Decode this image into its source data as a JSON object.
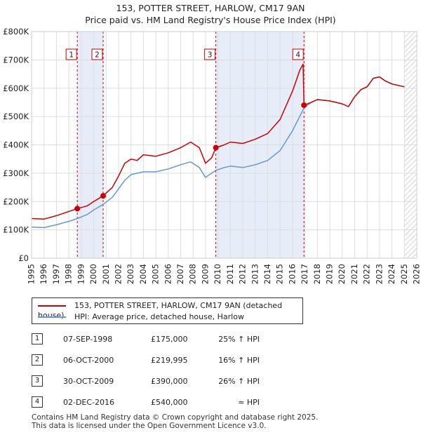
{
  "title_line1": "153, POTTER STREET, HARLOW, CM17 9AN",
  "title_line2": "Price paid vs. HM Land Registry's House Price Index (HPI)",
  "chart_data": {
    "type": "line",
    "ylim": [
      0,
      800000
    ],
    "xlim": [
      1995,
      2026
    ],
    "yticks": [
      {
        "value": 0,
        "label": "£0"
      },
      {
        "value": 100000,
        "label": "£100K"
      },
      {
        "value": 200000,
        "label": "£200K"
      },
      {
        "value": 300000,
        "label": "£300K"
      },
      {
        "value": 400000,
        "label": "£400K"
      },
      {
        "value": 500000,
        "label": "£500K"
      },
      {
        "value": 600000,
        "label": "£600K"
      },
      {
        "value": 700000,
        "label": "£700K"
      },
      {
        "value": 800000,
        "label": "£800K"
      }
    ],
    "xticks": [
      "1995",
      "1996",
      "1997",
      "1998",
      "1999",
      "2000",
      "2001",
      "2002",
      "2003",
      "2004",
      "2005",
      "2006",
      "2007",
      "2008",
      "2009",
      "2010",
      "2011",
      "2012",
      "2013",
      "2014",
      "2015",
      "2016",
      "2017",
      "2018",
      "2019",
      "2020",
      "2021",
      "2022",
      "2023",
      "2024",
      "2025",
      "2026"
    ],
    "shaded_periods": [
      [
        1998.68,
        2000.76
      ],
      [
        2009.83,
        2016.92
      ]
    ],
    "forecast_start": 2025.0,
    "series": [
      {
        "name": "153, POTTER STREET, HARLOW, CM17 9AN (detached house)",
        "color": "#cc0000",
        "points": [
          [
            1995.0,
            140000
          ],
          [
            1996.0,
            138000
          ],
          [
            1997.0,
            150000
          ],
          [
            1998.0,
            165000
          ],
          [
            1998.68,
            175000
          ],
          [
            1999.5,
            185000
          ],
          [
            2000.0,
            200000
          ],
          [
            2000.76,
            219995
          ],
          [
            2001.5,
            250000
          ],
          [
            2002.0,
            290000
          ],
          [
            2002.5,
            335000
          ],
          [
            2003.0,
            350000
          ],
          [
            2003.5,
            345000
          ],
          [
            2004.0,
            365000
          ],
          [
            2005.0,
            360000
          ],
          [
            2006.0,
            372000
          ],
          [
            2007.0,
            390000
          ],
          [
            2007.8,
            410000
          ],
          [
            2008.5,
            390000
          ],
          [
            2009.0,
            335000
          ],
          [
            2009.5,
            355000
          ],
          [
            2009.83,
            390000
          ],
          [
            2010.5,
            400000
          ],
          [
            2011.0,
            410000
          ],
          [
            2012.0,
            405000
          ],
          [
            2013.0,
            420000
          ],
          [
            2014.0,
            440000
          ],
          [
            2015.0,
            490000
          ],
          [
            2016.0,
            590000
          ],
          [
            2016.6,
            665000
          ],
          [
            2016.85,
            685000
          ],
          [
            2016.92,
            540000
          ],
          [
            2017.5,
            550000
          ],
          [
            2018.0,
            560000
          ],
          [
            2019.0,
            555000
          ],
          [
            2020.0,
            545000
          ],
          [
            2020.5,
            535000
          ],
          [
            2021.0,
            570000
          ],
          [
            2021.5,
            595000
          ],
          [
            2022.0,
            605000
          ],
          [
            2022.5,
            635000
          ],
          [
            2023.0,
            640000
          ],
          [
            2023.5,
            625000
          ],
          [
            2024.0,
            615000
          ],
          [
            2024.5,
            610000
          ],
          [
            2025.0,
            605000
          ]
        ]
      },
      {
        "name": "HPI: Average price, detached house, Harlow",
        "color": "#6699cc",
        "points": [
          [
            1995.0,
            110000
          ],
          [
            1996.0,
            108000
          ],
          [
            1997.0,
            118000
          ],
          [
            1998.0,
            130000
          ],
          [
            1998.68,
            140000
          ],
          [
            1999.5,
            155000
          ],
          [
            2000.0,
            170000
          ],
          [
            2000.76,
            190000
          ],
          [
            2001.5,
            215000
          ],
          [
            2002.0,
            245000
          ],
          [
            2002.5,
            275000
          ],
          [
            2003.0,
            295000
          ],
          [
            2004.0,
            305000
          ],
          [
            2005.0,
            305000
          ],
          [
            2006.0,
            315000
          ],
          [
            2007.0,
            330000
          ],
          [
            2007.8,
            340000
          ],
          [
            2008.5,
            320000
          ],
          [
            2009.0,
            285000
          ],
          [
            2009.83,
            310000
          ],
          [
            2010.5,
            320000
          ],
          [
            2011.0,
            325000
          ],
          [
            2012.0,
            320000
          ],
          [
            2013.0,
            330000
          ],
          [
            2014.0,
            345000
          ],
          [
            2015.0,
            380000
          ],
          [
            2016.0,
            450000
          ],
          [
            2016.92,
            530000
          ],
          [
            2017.5,
            550000
          ],
          [
            2018.0,
            560000
          ],
          [
            2019.0,
            555000
          ],
          [
            2020.0,
            545000
          ],
          [
            2020.5,
            535000
          ],
          [
            2021.0,
            570000
          ],
          [
            2021.5,
            595000
          ],
          [
            2022.0,
            605000
          ],
          [
            2022.5,
            635000
          ],
          [
            2023.0,
            640000
          ],
          [
            2023.5,
            625000
          ],
          [
            2024.0,
            615000
          ],
          [
            2024.5,
            610000
          ],
          [
            2025.0,
            605000
          ]
        ]
      }
    ],
    "sales": [
      {
        "id": "1",
        "year": 1998.68,
        "price": 175000
      },
      {
        "id": "2",
        "year": 2000.76,
        "price": 219995
      },
      {
        "id": "3",
        "year": 2009.83,
        "price": 390000
      },
      {
        "id": "4",
        "year": 2016.92,
        "price": 540000
      }
    ]
  },
  "legend": {
    "property": "153, POTTER STREET, HARLOW, CM17 9AN (detached house)",
    "hpi": "HPI: Average price, detached house, Harlow"
  },
  "sales_table": [
    {
      "id": "1",
      "date": "07-SEP-1998",
      "price": "£175,000",
      "hpi": "25% ↑ HPI"
    },
    {
      "id": "2",
      "date": "06-OCT-2000",
      "price": "£219,995",
      "hpi": "16% ↑ HPI"
    },
    {
      "id": "3",
      "date": "30-OCT-2009",
      "price": "£390,000",
      "hpi": "26% ↑ HPI"
    },
    {
      "id": "4",
      "date": "02-DEC-2016",
      "price": "£540,000",
      "hpi": "≈ HPI"
    }
  ],
  "footer_line1": "Contains HM Land Registry data © Crown copyright and database right 2025.",
  "footer_line2": "This data is licensed under the Open Government Licence v3.0."
}
